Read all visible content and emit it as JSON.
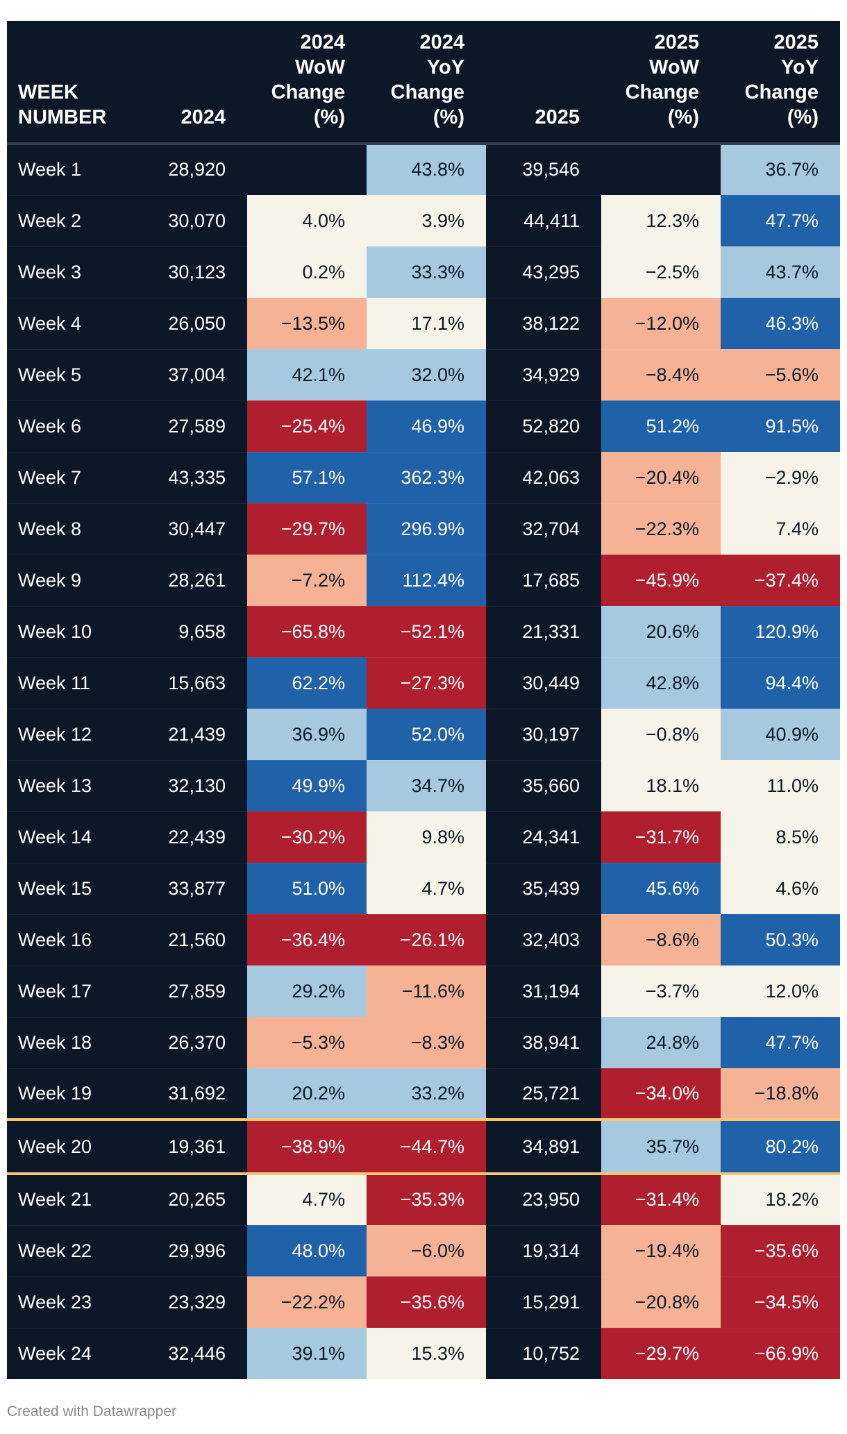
{
  "chart_data": {
    "type": "table",
    "columns": [
      "WEEK NUMBER",
      "2024",
      "2024 WoW Change (%)",
      "2024 YoY Change (%)",
      "2025",
      "2025 WoW Change (%)",
      "2025 YoY Change (%)"
    ],
    "header_lines": [
      [
        "WEEK",
        "NUMBER"
      ],
      [
        "2024"
      ],
      [
        "2024",
        "WoW",
        "Change",
        "(%)"
      ],
      [
        "2024",
        "YoY",
        "Change",
        "(%)"
      ],
      [
        "2025"
      ],
      [
        "2025",
        "WoW",
        "Change",
        "(%)"
      ],
      [
        "2025",
        "YoY",
        "Change",
        "(%)"
      ]
    ],
    "highlight_row": "Week 20",
    "rows": [
      [
        "Week 1",
        "28,920",
        "",
        "43.8%",
        "39,546",
        "",
        "36.7%"
      ],
      [
        "Week 2",
        "30,070",
        "4.0%",
        "3.9%",
        "44,411",
        "12.3%",
        "47.7%"
      ],
      [
        "Week 3",
        "30,123",
        "0.2%",
        "33.3%",
        "43,295",
        "−2.5%",
        "43.7%"
      ],
      [
        "Week 4",
        "26,050",
        "−13.5%",
        "17.1%",
        "38,122",
        "−12.0%",
        "46.3%"
      ],
      [
        "Week 5",
        "37,004",
        "42.1%",
        "32.0%",
        "34,929",
        "−8.4%",
        "−5.6%"
      ],
      [
        "Week 6",
        "27,589",
        "−25.4%",
        "46.9%",
        "52,820",
        "51.2%",
        "91.5%"
      ],
      [
        "Week 7",
        "43,335",
        "57.1%",
        "362.3%",
        "42,063",
        "−20.4%",
        "−2.9%"
      ],
      [
        "Week 8",
        "30,447",
        "−29.7%",
        "296.9%",
        "32,704",
        "−22.3%",
        "7.4%"
      ],
      [
        "Week 9",
        "28,261",
        "−7.2%",
        "112.4%",
        "17,685",
        "−45.9%",
        "−37.4%"
      ],
      [
        "Week 10",
        "9,658",
        "−65.8%",
        "−52.1%",
        "21,331",
        "20.6%",
        "120.9%"
      ],
      [
        "Week 11",
        "15,663",
        "62.2%",
        "−27.3%",
        "30,449",
        "42.8%",
        "94.4%"
      ],
      [
        "Week 12",
        "21,439",
        "36.9%",
        "52.0%",
        "30,197",
        "−0.8%",
        "40.9%"
      ],
      [
        "Week 13",
        "32,130",
        "49.9%",
        "34.7%",
        "35,660",
        "18.1%",
        "11.0%"
      ],
      [
        "Week 14",
        "22,439",
        "−30.2%",
        "9.8%",
        "24,341",
        "−31.7%",
        "8.5%"
      ],
      [
        "Week 15",
        "33,877",
        "51.0%",
        "4.7%",
        "35,439",
        "45.6%",
        "4.6%"
      ],
      [
        "Week 16",
        "21,560",
        "−36.4%",
        "−26.1%",
        "32,403",
        "−8.6%",
        "50.3%"
      ],
      [
        "Week 17",
        "27,859",
        "29.2%",
        "−11.6%",
        "31,194",
        "−3.7%",
        "12.0%"
      ],
      [
        "Week 18",
        "26,370",
        "−5.3%",
        "−8.3%",
        "38,941",
        "24.8%",
        "47.7%"
      ],
      [
        "Week 19",
        "31,692",
        "20.2%",
        "33.2%",
        "25,721",
        "−34.0%",
        "−18.8%"
      ],
      [
        "Week 20",
        "19,361",
        "−38.9%",
        "−44.7%",
        "34,891",
        "35.7%",
        "80.2%"
      ],
      [
        "Week 21",
        "20,265",
        "4.7%",
        "−35.3%",
        "23,950",
        "−31.4%",
        "18.2%"
      ],
      [
        "Week 22",
        "29,996",
        "48.0%",
        "−6.0%",
        "19,314",
        "−19.4%",
        "−35.6%"
      ],
      [
        "Week 23",
        "23,329",
        "−22.2%",
        "−35.6%",
        "15,291",
        "−20.8%",
        "−34.5%"
      ],
      [
        "Week 24",
        "32,446",
        "39.1%",
        "15.3%",
        "10,752",
        "−29.7%",
        "−66.9%"
      ]
    ],
    "color_scale": {
      "strong_negative": "#b01f2e",
      "negative": "#f6b294",
      "neutral": "#f6f4e9",
      "positive": "#a6c9e0",
      "strong_positive": "#2062a9"
    }
  },
  "colors": {
    "background_dark": "#0c1828",
    "text_light": "#ffffff",
    "text_dark": "#0c1828",
    "highlight_line": "#f7c873"
  },
  "footer": {
    "credit": "Created with Datawrapper"
  }
}
